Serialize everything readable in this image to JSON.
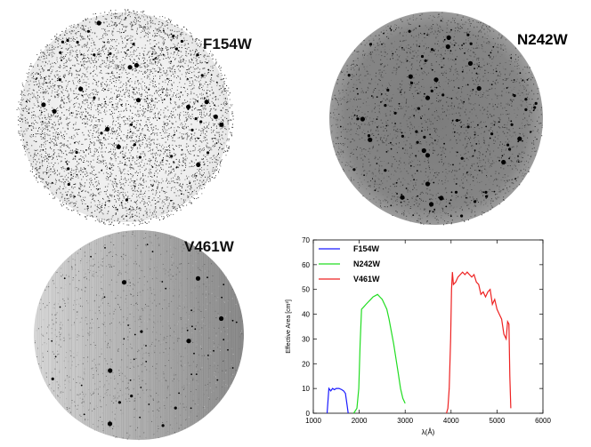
{
  "images": [
    {
      "filter_label": "F154W"
    },
    {
      "filter_label": "N242W"
    },
    {
      "filter_label": "V461W"
    }
  ],
  "chart_data": {
    "type": "line",
    "title": "",
    "xlabel": "λ(Å)",
    "ylabel": "Effective Area [cm²]",
    "xlim": [
      1000,
      6000
    ],
    "ylim": [
      0,
      70
    ],
    "xticks": [
      1000,
      2000,
      3000,
      4000,
      5000,
      6000
    ],
    "yticks": [
      0,
      10,
      20,
      30,
      40,
      50,
      60,
      70
    ],
    "legend_position": "top-left",
    "series": [
      {
        "name": "F154W",
        "color": "#1a1aff",
        "x": [
          1300,
          1340,
          1380,
          1420,
          1460,
          1500,
          1560,
          1620,
          1660,
          1700,
          1730,
          1760
        ],
        "y": [
          0,
          10,
          9,
          10,
          9.5,
          10,
          10,
          9.5,
          9,
          8,
          4,
          0
        ]
      },
      {
        "name": "N242W",
        "color": "#22dd22",
        "x": [
          1880,
          1950,
          1990,
          2020,
          2050,
          2100,
          2150,
          2200,
          2250,
          2300,
          2350,
          2400,
          2450,
          2500,
          2550,
          2600,
          2650,
          2700,
          2750,
          2800,
          2850,
          2900,
          2950,
          3000
        ],
        "y": [
          0,
          2,
          10,
          28,
          42,
          43,
          44,
          45,
          46,
          47,
          47.5,
          48,
          47,
          46,
          44,
          42,
          38,
          33,
          28,
          22,
          16,
          10,
          6,
          4
        ]
      },
      {
        "name": "V461W",
        "color": "#ee2222",
        "x": [
          3900,
          3930,
          3960,
          3990,
          4010,
          4030,
          4050,
          4100,
          4150,
          4200,
          4250,
          4300,
          4350,
          4400,
          4450,
          4500,
          4550,
          4600,
          4650,
          4700,
          4750,
          4800,
          4850,
          4900,
          4950,
          5000,
          5050,
          5100,
          5150,
          5200,
          5230,
          5260,
          5280,
          5300
        ],
        "y": [
          0,
          2,
          10,
          30,
          50,
          57,
          52,
          53,
          55,
          56,
          57,
          56,
          57,
          56,
          55,
          56,
          53,
          52,
          48,
          49,
          47,
          49,
          50,
          44,
          46,
          42,
          40,
          38,
          32,
          30,
          37,
          36,
          15,
          2
        ]
      }
    ]
  }
}
